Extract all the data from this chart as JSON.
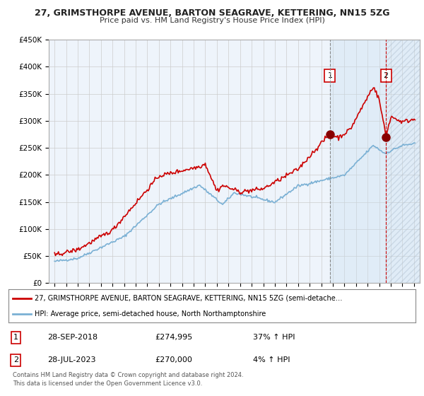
{
  "title1": "27, GRIMSTHORPE AVENUE, BARTON SEAGRAVE, KETTERING, NN15 5ZG",
  "title2": "Price paid vs. HM Land Registry's House Price Index (HPI)",
  "legend_line1": "27, GRIMSTHORPE AVENUE, BARTON SEAGRAVE, KETTERING, NN15 5ZG (semi-detache…",
  "legend_line2": "HPI: Average price, semi-detached house, North Northamptonshire",
  "table": [
    {
      "num": "1",
      "date": "28-SEP-2018",
      "price": "£274,995",
      "change": "37% ↑ HPI"
    },
    {
      "num": "2",
      "date": "28-JUL-2023",
      "price": "£270,000",
      "change": "4% ↑ HPI"
    }
  ],
  "footnote1": "Contains HM Land Registry data © Crown copyright and database right 2024.",
  "footnote2": "This data is licensed under the Open Government Licence v3.0.",
  "sale1_year": 2018.75,
  "sale1_price": 274995,
  "sale2_year": 2023.58,
  "sale2_price": 270000,
  "hpi_color": "#7ab0d4",
  "price_color": "#cc0000",
  "background_color": "#ffffff",
  "grid_color": "#cccccc",
  "ylim_max": 450000,
  "ylim_min": 0,
  "shade_between_color": "#ddeeff",
  "shade_after_color": "#ddeeff"
}
